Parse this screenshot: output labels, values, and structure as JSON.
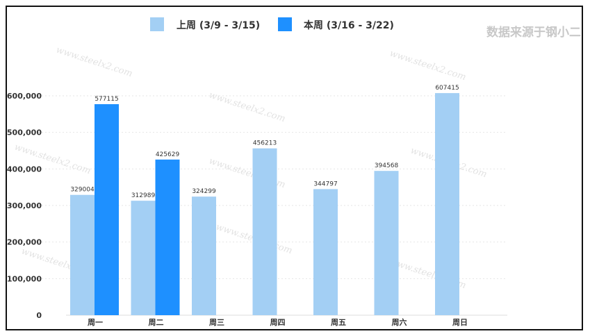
{
  "source_note": "数据来源于钢小二",
  "watermark": "www.steelx2.com",
  "colors": {
    "last_week": "#a3cff4",
    "this_week": "#1e90ff"
  },
  "chart_data": {
    "type": "bar",
    "categories": [
      "周一",
      "周二",
      "周三",
      "周四",
      "周五",
      "周六",
      "周日"
    ],
    "series": [
      {
        "name": "上周 (3/9 - 3/15)",
        "values": [
          329004,
          312989,
          324299,
          456213,
          344797,
          394568,
          607415
        ]
      },
      {
        "name": "本周 (3/16 - 3/22)",
        "values": [
          577115,
          425629,
          null,
          null,
          null,
          null,
          null
        ]
      }
    ],
    "yticks": [
      "0",
      "100,000",
      "200,000",
      "300,000",
      "400,000",
      "500,000",
      "600,000"
    ],
    "ylim": [
      0,
      600000
    ],
    "grid": true,
    "legend": "top-center"
  }
}
